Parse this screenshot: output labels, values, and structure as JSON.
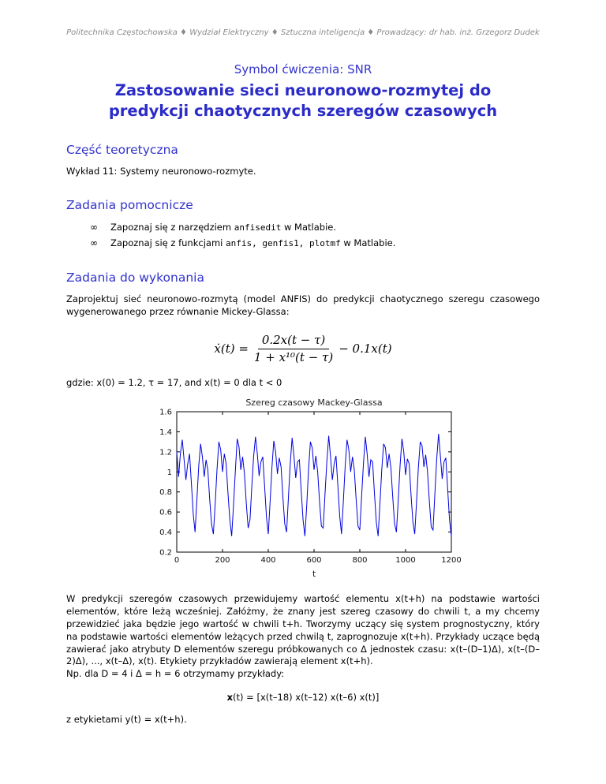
{
  "colors": {
    "accent": "#3333cc",
    "title_blue": "#2b2bc8",
    "header_gray": "#8a8a8a"
  },
  "header": {
    "text": "Politechnika Częstochowska ♦ Wydział Elektryczny ♦ Sztuczna inteligencja ♦ Prowadzący: dr hab. inż. Grzegorz Dudek"
  },
  "title": {
    "symbol": "Symbol ćwiczenia: SNR",
    "line1": "Zastosowanie sieci neuronowo-rozmytej do",
    "line2": "predykcji chaotycznych szeregów czasowych"
  },
  "sections": {
    "theory": {
      "heading": "Część teoretyczna",
      "body": "Wykład 11: Systemy neuronowo-rozmyte."
    },
    "aux": {
      "heading": "Zadania pomocnicze",
      "bullet_char": "∞",
      "items": [
        {
          "prefix": "Zapoznaj się z narzędziem ",
          "code": "anfisedit",
          "suffix": " w Matlabie."
        },
        {
          "prefix": "Zapoznaj się z funkcjami ",
          "code": "anfis, genfis1, plotmf",
          "suffix": " w Matlabie."
        }
      ]
    },
    "tasks": {
      "heading": "Zadania do wykonania",
      "intro": "Zaprojektuj sieć neuronowo-rozmytą (model ANFIS) do predykcji chaotycznego szeregu czasowego wygenerowanego przez równanie Mickey-Glassa:",
      "where_line": "gdzie: x(0) = 1.2, τ = 17, and x(t) = 0 dla t < 0",
      "prediction_paragraph": "W predykcji szeregów czasowych przewidujemy wartość elementu x(t+h) na podstawie wartości elementów, które leżą wcześniej. Załóżmy, że znany jest szereg czasowy do chwili t, a my chcemy przewidzieć jaka będzie jego wartość w chwili t+h. Tworzymy uczący się system prognostyczny, który na podstawie wartości elementów leżących przed chwilą t, zaprognozuje x(t+h). Przykłady uczące będą zawierać jako atrybuty D elementów szeregu próbkowanych co Δ jednostek czasu: x(t–(D–1)Δ), x(t–(D–2)Δ), ..., x(t–Δ), x(t). Etykiety przykładów zawierają element x(t+h).",
      "example_intro": "Np. dla D = 4 i Δ = h = 6 otrzymamy przykłady:",
      "vector_bold": "x",
      "vector_rest": "(t) = [x(t–18) x(t–12) x(t–6) x(t)]",
      "labels_line": "z etykietami y(t) = x(t+h)."
    }
  },
  "equation": {
    "lhs": "ẋ(t) =",
    "numerator": "0.2x(t − τ)",
    "denominator": "1 + x¹⁰(t − τ)",
    "rhs": "− 0.1x(t)"
  },
  "chart_data": {
    "type": "line",
    "title": "Szereg czasowy Mackey-Glassa",
    "xlabel": "t",
    "ylabel": "",
    "xlim": [
      0,
      1200
    ],
    "ylim": [
      0.2,
      1.6
    ],
    "xticks": [
      0,
      200,
      400,
      600,
      800,
      1000,
      1200
    ],
    "yticks": [
      0.2,
      0.4,
      0.6,
      0.8,
      1,
      1.2,
      1.4,
      1.6
    ],
    "grid": false,
    "legend": "none",
    "line_color": "#0000e0",
    "series": [
      {
        "name": "x(t)",
        "x_start": 0,
        "x_step": 8,
        "values": [
          1.2,
          0.95,
          1.18,
          1.32,
          1.12,
          0.92,
          1.08,
          1.18,
          0.88,
          0.58,
          0.4,
          0.72,
          1.05,
          1.28,
          1.15,
          0.95,
          1.12,
          1.02,
          0.72,
          0.48,
          0.38,
          0.68,
          1.02,
          1.3,
          1.22,
          1.0,
          1.18,
          1.08,
          0.78,
          0.52,
          0.36,
          0.66,
          1.0,
          1.33,
          1.25,
          1.02,
          1.15,
          0.98,
          0.68,
          0.44,
          0.52,
          0.85,
          1.15,
          1.35,
          1.18,
          0.96,
          1.1,
          1.15,
          0.85,
          0.55,
          0.38,
          0.7,
          1.04,
          1.31,
          1.2,
          0.98,
          1.14,
          1.05,
          0.74,
          0.48,
          0.4,
          0.74,
          1.08,
          1.34,
          1.16,
          0.94,
          1.1,
          1.12,
          0.8,
          0.52,
          0.36,
          0.66,
          1.02,
          1.3,
          1.24,
          1.02,
          1.16,
          1.0,
          0.7,
          0.46,
          0.44,
          0.78,
          1.1,
          1.36,
          1.15,
          0.92,
          1.08,
          1.16,
          0.86,
          0.56,
          0.38,
          0.7,
          1.05,
          1.32,
          1.22,
          1.0,
          1.15,
          1.02,
          0.72,
          0.46,
          0.42,
          0.76,
          1.08,
          1.35,
          1.18,
          0.95,
          1.12,
          1.1,
          0.78,
          0.5,
          0.36,
          0.68,
          1.02,
          1.28,
          1.24,
          1.04,
          1.18,
          1.04,
          0.74,
          0.48,
          0.4,
          0.72,
          1.06,
          1.33,
          1.2,
          0.97,
          1.13,
          1.08,
          0.76,
          0.5,
          0.38,
          0.7,
          1.04,
          1.3,
          1.26,
          1.05,
          1.17,
          1.0,
          0.7,
          0.45,
          0.42,
          0.78,
          1.12,
          1.38,
          1.16,
          0.93,
          1.1,
          1.14,
          0.82,
          0.52,
          0.36
        ]
      }
    ]
  }
}
